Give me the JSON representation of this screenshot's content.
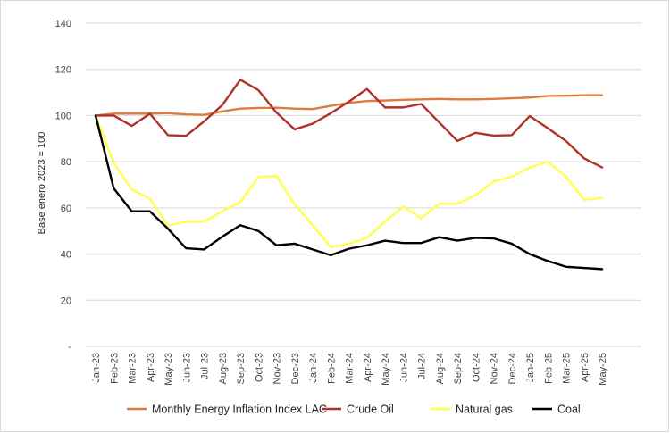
{
  "chart_data": {
    "type": "line",
    "ylabel": "Base enero 2023 = 100",
    "ylim": [
      0,
      140
    ],
    "yticks": [
      0,
      20,
      40,
      60,
      80,
      100,
      120,
      140
    ],
    "ytick_labels": [
      "-",
      "20",
      "40",
      "60",
      "80",
      "100",
      "120",
      "140"
    ],
    "grid": "horizontal",
    "legend_position": "bottom",
    "categories": [
      "Jan-23",
      "Feb-23",
      "Mar-23",
      "Apr-23",
      "May-23",
      "Jun-23",
      "Jul-23",
      "Aug-23",
      "Sep-23",
      "Oct-23",
      "Nov-23",
      "Dec-23",
      "Jan-24",
      "Feb-24",
      "Mar-24",
      "Apr-24",
      "May-24",
      "Jun-24",
      "Jul-24",
      "Aug-24",
      "Sep-24",
      "Oct-24",
      "Nov-24",
      "Dec-24",
      "Jan-25",
      "Feb-25",
      "Mar-25",
      "Apr-25",
      "May-25"
    ],
    "series": [
      {
        "name": "Monthly Energy Inflation Index LAC",
        "color": "#E07B39",
        "values": [
          100,
          100.8,
          100.8,
          100.8,
          101,
          100.5,
          100.3,
          101.8,
          103,
          103.3,
          103.4,
          103,
          102.8,
          104.2,
          105.5,
          106.3,
          106.5,
          106.8,
          107,
          107.2,
          107,
          107,
          107.2,
          107.5,
          107.8,
          108.5,
          108.6,
          108.8,
          108.8
        ]
      },
      {
        "name": "Crude Oil",
        "color": "#B0312A",
        "values": [
          100,
          100,
          95.5,
          100.8,
          91.5,
          91.2,
          97.5,
          104.5,
          115.5,
          111,
          101.3,
          94,
          96.5,
          101,
          106,
          111.5,
          103.5,
          103.5,
          105,
          97,
          89,
          92.5,
          91.3,
          91.5,
          99.8,
          94.5,
          89,
          81.5,
          77.5
        ]
      },
      {
        "name": "Natural gas",
        "color": "#FFFF4D",
        "values": [
          100,
          79.5,
          68,
          64,
          52.5,
          54,
          54,
          58.5,
          62.5,
          73.3,
          73.8,
          61.5,
          52.5,
          43,
          44.5,
          47,
          54,
          60.5,
          55.5,
          61.8,
          61.8,
          65.5,
          71.5,
          73.5,
          77.5,
          80,
          73.5,
          63.5,
          64.3
        ]
      },
      {
        "name": "Coal",
        "color": "#000000",
        "values": [
          100,
          68.5,
          58.5,
          58.5,
          51,
          42.5,
          42,
          47.5,
          52.5,
          50,
          43.8,
          44.5,
          42,
          39.5,
          42.3,
          43.8,
          45.8,
          44.8,
          44.8,
          47.3,
          45.8,
          47,
          46.8,
          44.5,
          40,
          37,
          34.5,
          34,
          33.5
        ]
      }
    ]
  }
}
